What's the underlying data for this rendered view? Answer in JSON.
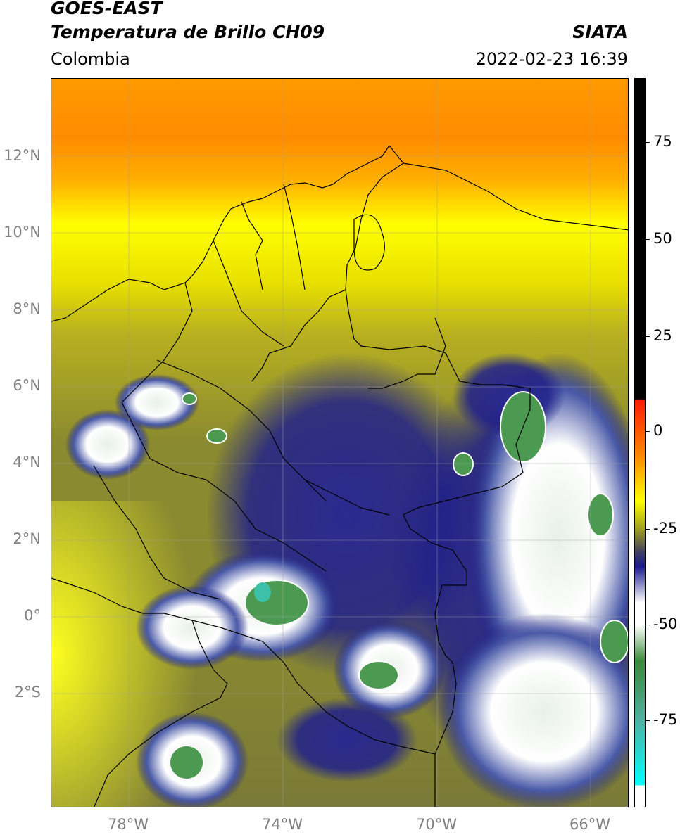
{
  "header": {
    "satellite": "GOES-EAST",
    "product": "Temperatura de Brillo CH09",
    "region": "Colombia",
    "source": "SIATA",
    "datetime": "2022-02-23 16:39"
  },
  "map": {
    "lon_range": [
      -80,
      -65
    ],
    "lat_range": [
      -5,
      14
    ],
    "lat_labels": [
      {
        "lat": 12,
        "label": "12°N"
      },
      {
        "lat": 10,
        "label": "10°N"
      },
      {
        "lat": 8,
        "label": "8°N"
      },
      {
        "lat": 6,
        "label": "6°N"
      },
      {
        "lat": 4,
        "label": "4°N"
      },
      {
        "lat": 2,
        "label": "2°N"
      },
      {
        "lat": 0,
        "label": "0°"
      },
      {
        "lat": -2,
        "label": "2°S"
      }
    ],
    "lon_labels": [
      {
        "lon": -78,
        "label": "78°W"
      },
      {
        "lon": -74,
        "label": "74°W"
      },
      {
        "lon": -70,
        "label": "70°W"
      },
      {
        "lon": -66,
        "label": "66°W"
      }
    ],
    "gridlines": true
  },
  "colorbar": {
    "range": [
      -100,
      90
    ],
    "ticks": [
      {
        "value": 75,
        "label": "75"
      },
      {
        "value": 50,
        "label": "50"
      },
      {
        "value": 25,
        "label": "25"
      },
      {
        "value": 0,
        "label": "0"
      },
      {
        "value": -25,
        "label": "-25"
      },
      {
        "value": -50,
        "label": "-50"
      },
      {
        "value": -75,
        "label": "-75"
      }
    ]
  }
}
